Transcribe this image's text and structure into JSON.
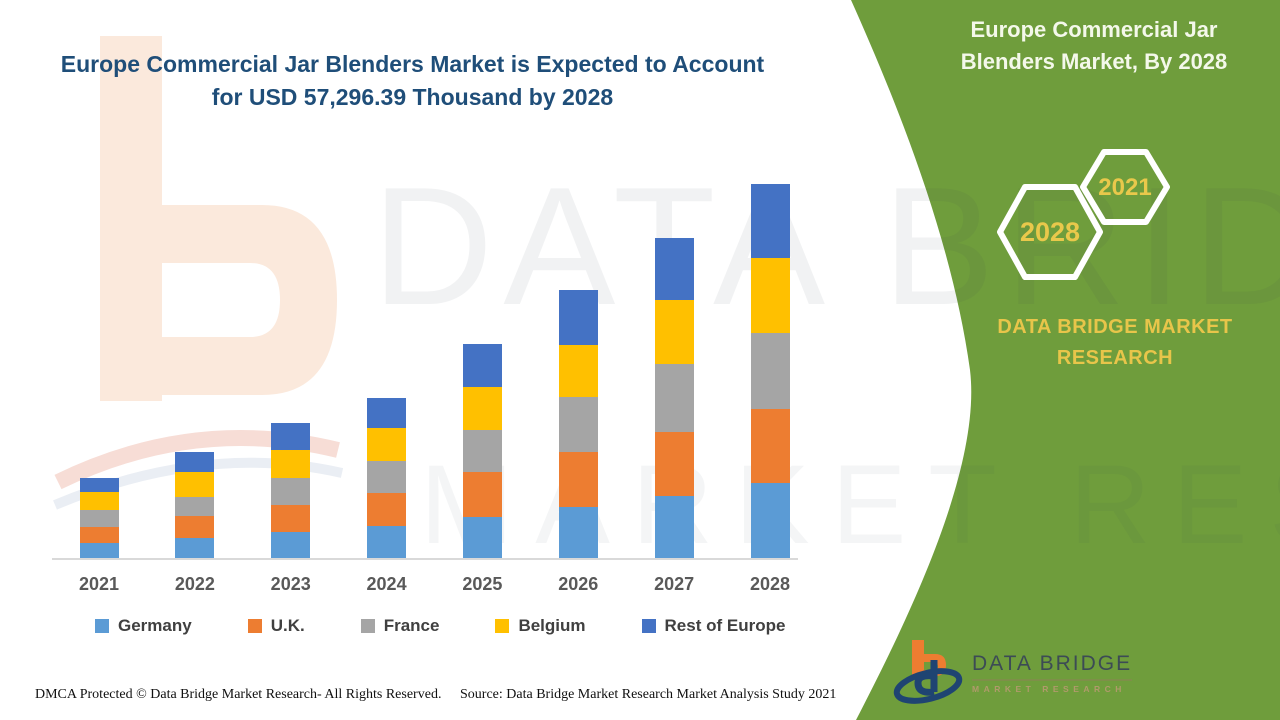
{
  "header": {
    "title": "Europe Commercial Jar Blenders Market is Expected to Account for USD 57,296.39 Thousand by 2028"
  },
  "side_panel": {
    "title": "Europe Commercial Jar Blenders Market, By 2028",
    "hexagons": [
      {
        "label": "2028"
      },
      {
        "label": "2021"
      }
    ],
    "brand_text": "DATA BRIDGE MARKET RESEARCH",
    "panel_color": "#6f9d3c",
    "accent_text_color": "#e9c84b"
  },
  "watermark": {
    "line1": "DATA BRIDGE",
    "line2": "MARKET RESEARCH"
  },
  "logo": {
    "name": "DATA BRIDGE",
    "tagline": "MARKET RESEARCH"
  },
  "footer": {
    "dmca": "DMCA Protected © Data Bridge Market Research- All Rights Reserved.",
    "source": "Source: Data Bridge Market Research Market Analysis Study 2021"
  },
  "chart_data": {
    "type": "bar",
    "stacked": true,
    "title": "Europe Commercial Jar Blenders Market is Expected to Account for USD 57,296.39 Thousand by 2028",
    "unit": "USD Thousand",
    "xlabel": "",
    "ylabel": "",
    "y_axis_visible": false,
    "grid": false,
    "legend_position": "bottom",
    "categories": [
      "2021",
      "2022",
      "2023",
      "2024",
      "2025",
      "2026",
      "2027",
      "2028"
    ],
    "series": [
      {
        "name": "Germany",
        "color": "#5B9BD5",
        "values": [
          2300,
          3050,
          3980,
          4900,
          6280,
          7810,
          9500,
          11490
        ]
      },
      {
        "name": "U.K.",
        "color": "#ED7D31",
        "values": [
          2450,
          3350,
          4140,
          5060,
          6890,
          8430,
          9800,
          11340
        ]
      },
      {
        "name": "France",
        "color": "#A5A5A5",
        "values": [
          2600,
          2900,
          4140,
          4900,
          6430,
          8430,
          10420,
          11640
        ]
      },
      {
        "name": "Belgium",
        "color": "#FFC000",
        "values": [
          2750,
          3850,
          4290,
          5060,
          6590,
          7970,
          9800,
          11490
        ]
      },
      {
        "name": "Rest of Europe",
        "color": "#4472C4",
        "values": [
          2150,
          3100,
          4140,
          4600,
          6590,
          8430,
          9500,
          11336.39
        ]
      }
    ],
    "totals_estimated": [
      12250,
      16250,
      20690,
      24520,
      32780,
      41070,
      49020,
      57296.39
    ],
    "labeled_value_2028_total": 57296.39,
    "values_are_estimates": true
  }
}
